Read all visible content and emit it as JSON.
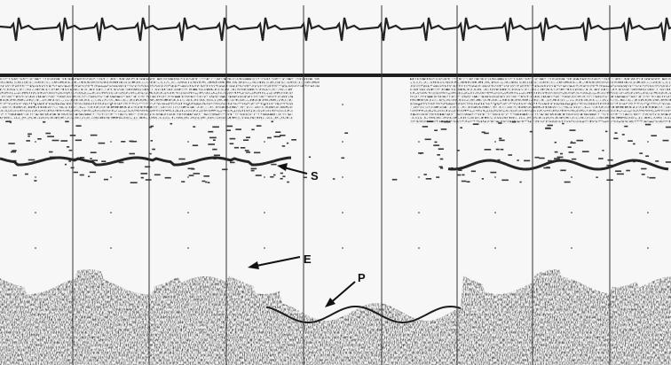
{
  "image": {
    "kind": "M-mode echocardiogram strip with ECG trace",
    "colors": {
      "background": "#f7f7f7",
      "ink": "#1a1a1a",
      "trace": "#222222"
    }
  },
  "annotations": [
    {
      "id": "S",
      "label": "S"
    },
    {
      "id": "E",
      "label": "E"
    },
    {
      "id": "P",
      "label": "P"
    }
  ]
}
